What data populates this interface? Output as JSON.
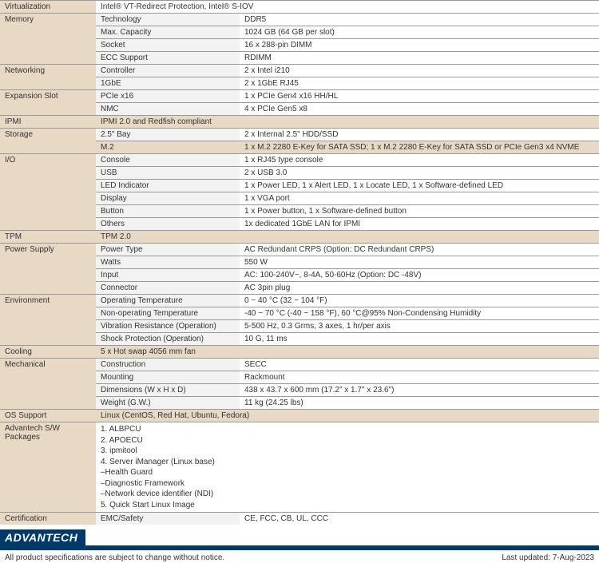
{
  "colors": {
    "cat_bg": "#e8d9c5",
    "sub_bg": "#f2f2f2",
    "val_bg": "#ffffff",
    "border": "#999999",
    "brand": "#003a6b",
    "text": "#333333"
  },
  "rows": [
    {
      "cat": "Virtualization",
      "sub": "",
      "val": "Intel® VT-Redirect Protection, Intel® S-IOV"
    },
    {
      "cat": "Memory",
      "catspan": 4,
      "sub": "Technology",
      "val": "DDR5"
    },
    {
      "sub": "Max. Capacity",
      "val": "1024 GB (64 GB per slot)"
    },
    {
      "sub": "Socket",
      "val": "16  x 288-pin DIMM"
    },
    {
      "sub": "ECC Support",
      "val": "RDIMM"
    },
    {
      "cat": "Networking",
      "catspan": 2,
      "sub": "Controller",
      "val": "2 x Intel i210"
    },
    {
      "sub": "1GbE",
      "val": "2 x 1GbE RJ45"
    },
    {
      "cat": "Expansion Slot",
      "catspan": 2,
      "sub": "PCIe x16",
      "val": "1 x PCIe Gen4 x16 HH/HL"
    },
    {
      "sub": "NMC",
      "val": "4 x PCIe Gen5 x8"
    },
    {
      "cat": "IPMI",
      "sub": "",
      "val": "IPMI 2.0 and Redfish compliant",
      "ipmi": true
    },
    {
      "cat": "Storage",
      "catspan": 2,
      "sub": "2.5\" Bay",
      "val": "2 x Internal 2.5\" HDD/SSD"
    },
    {
      "sub": "M.2",
      "val": "1 x M.2 2280 E-Key for SATA SSD; 1 x M.2 2280 E-Key for SATA SSD or PCIe Gen3 x4 NVME",
      "subhl": true
    },
    {
      "cat": "I/O",
      "catspan": 6,
      "sub": "Console",
      "val": "1 x RJ45 type console"
    },
    {
      "sub": "USB",
      "val": "2 x USB 3.0"
    },
    {
      "sub": "LED Indicator",
      "val": "1 x Power LED, 1 x Alert LED, 1 x Locate LED, 1 x Software-defined LED"
    },
    {
      "sub": "Display",
      "val": "1 x VGA port"
    },
    {
      "sub": "Button",
      "val": "1 x Power button, 1 x Software-defined button"
    },
    {
      "sub": "Others",
      "val": "1x dedicated 1GbE LAN for IPMI"
    },
    {
      "cat": "TPM",
      "sub": "",
      "val": "TPM 2.0",
      "cathl": true
    },
    {
      "cat": "Power Supply",
      "catspan": 4,
      "sub": "Power Type",
      "val": "AC Redundant CRPS (Option: DC Redundant CRPS)"
    },
    {
      "sub": "Watts",
      "val": "550 W"
    },
    {
      "sub": "Input",
      "val": "AC: 100-240V~, 8-4A, 50-60Hz (Option: DC -48V)"
    },
    {
      "sub": "Connector",
      "val": "AC 3pin plug"
    },
    {
      "cat": "Environment",
      "catspan": 4,
      "sub": "Operating Temperature",
      "val": "0 ~ 40 °C (32 ~ 104 °F)"
    },
    {
      "sub": "Non-operating Temperature",
      "val": "-40 ~ 70 °C (-40 ~ 158 °F), 60 °C@95% Non-Condensing Humidity"
    },
    {
      "sub": "Vibration Resistance (Operation)",
      "val": "5-500 Hz, 0.3 Grms, 3 axes, 1 hr/per axis"
    },
    {
      "sub": "Shock Protection (Operation)",
      "val": "10 G, 11 ms"
    },
    {
      "cat": "Cooling",
      "sub": "",
      "val": "5 x Hot swap 4056 mm fan",
      "cathl": true
    },
    {
      "cat": "Mechanical",
      "catspan": 4,
      "sub": "Construction",
      "val": "SECC"
    },
    {
      "sub": "Mounting",
      "val": "Rackmount"
    },
    {
      "sub": "Dimensions (W x H x D)",
      "val": "438 x 43.7 x 600 mm (17.2\" x 1.7\" x  23.6\")"
    },
    {
      "sub": "Weight (G.W.)",
      "val": "11 kg (24.25 lbs)"
    },
    {
      "cat": "OS Support",
      "sub": "",
      "val": "Linux (CentOS, Red Hat, Ubuntu, Fedora)",
      "cathl": true
    },
    {
      "cat": "Advantech S/W Packages",
      "sub": "",
      "val": "1. ALBPCU\n2. APOECU\n3. ipmitool\n4. Server iManager (Linux base)\n    –Health Guard\n    –Diagnostic Framework\n    –Network device identifier (NDI)\n5. Quick Start Linux Image",
      "multi": true
    },
    {
      "cat": "Certification",
      "sub": "EMC/Safety",
      "val": "CE, FCC, CB, UL, CCC"
    }
  ],
  "logo": "ADVANTECH",
  "footer_left": "All product specifications are subject to change without notice.",
  "footer_right": "Last updated: 7-Aug-2023"
}
